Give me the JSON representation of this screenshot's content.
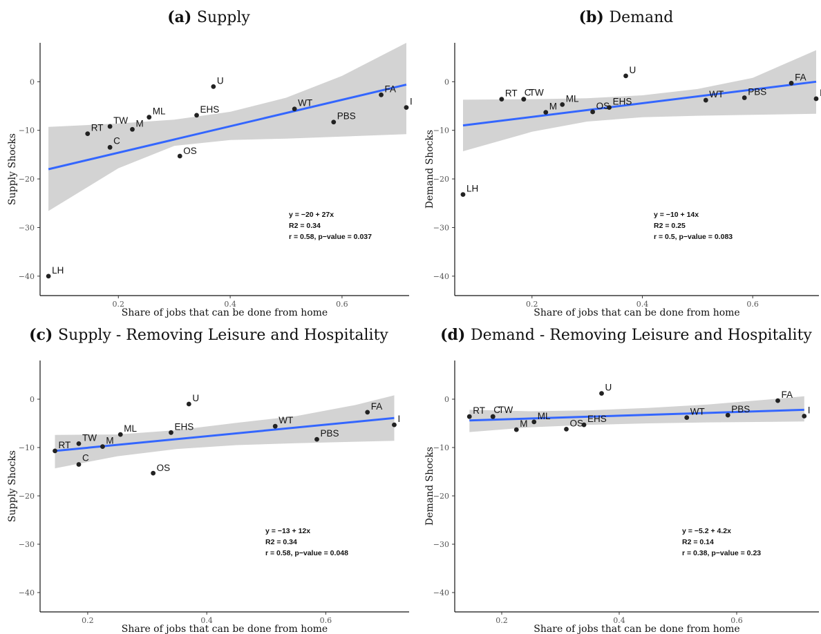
{
  "colors": {
    "fit_line": "#3366ff",
    "confidence_band": "#d3d3d3",
    "points": "#222222"
  },
  "chart_data": [
    {
      "type": "scatter",
      "title_prefix": "(a)",
      "title": "Supply",
      "xlabel": "Share of jobs that can be done from home",
      "ylabel": "Supply Shocks",
      "xlim": [
        0.06,
        0.72
      ],
      "ylim": [
        -44,
        8
      ],
      "xticks": [
        0.2,
        0.4,
        0.6
      ],
      "yticks": [
        0,
        -10,
        -20,
        -30,
        -40
      ],
      "points": [
        {
          "label": "LH",
          "x": 0.075,
          "y": -40
        },
        {
          "label": "RT",
          "x": 0.145,
          "y": -10.7
        },
        {
          "label": "C",
          "x": 0.185,
          "y": -13.5
        },
        {
          "label": "TW",
          "x": 0.185,
          "y": -9.2
        },
        {
          "label": "M",
          "x": 0.225,
          "y": -9.8
        },
        {
          "label": "ML",
          "x": 0.255,
          "y": -7.3
        },
        {
          "label": "OS",
          "x": 0.31,
          "y": -15.3
        },
        {
          "label": "EHS",
          "x": 0.34,
          "y": -6.9
        },
        {
          "label": "U",
          "x": 0.37,
          "y": -1.0
        },
        {
          "label": "WT",
          "x": 0.515,
          "y": -5.6
        },
        {
          "label": "PBS",
          "x": 0.585,
          "y": -8.3
        },
        {
          "label": "FA",
          "x": 0.67,
          "y": -2.7
        },
        {
          "label": "I",
          "x": 0.715,
          "y": -5.3
        }
      ],
      "fit": {
        "x": [
          0.075,
          0.715
        ],
        "y": [
          -18,
          -0.6
        ]
      },
      "band": {
        "x": [
          0.075,
          0.2,
          0.3,
          0.4,
          0.5,
          0.6,
          0.715
        ],
        "upper": [
          -9.3,
          -8.6,
          -7.8,
          -6.2,
          -3.3,
          1.2,
          8
        ],
        "lower": [
          -26.6,
          -17.8,
          -13.2,
          -12,
          -11.7,
          -11.3,
          -10.8
        ]
      },
      "annotation": [
        "y = −20 + 27x",
        "R2 = 0.34",
        "r = 0.58, p−value = 0.037"
      ]
    },
    {
      "type": "scatter",
      "title_prefix": "(b)",
      "title": "Demand",
      "xlabel": "Share of jobs that can be done from home",
      "ylabel": "Demand Shocks",
      "xlim": [
        0.06,
        0.72
      ],
      "ylim": [
        -44,
        8
      ],
      "xticks": [
        0.2,
        0.4,
        0.6
      ],
      "yticks": [
        0,
        -10,
        -20,
        -30,
        -40
      ],
      "points": [
        {
          "label": "LH",
          "x": 0.075,
          "y": -23.2
        },
        {
          "label": "RT",
          "x": 0.145,
          "y": -3.6
        },
        {
          "label": "C",
          "x": 0.185,
          "y": -3.6
        },
        {
          "label": "TW",
          "x": 0.185,
          "y": -3.6
        },
        {
          "label": "M",
          "x": 0.225,
          "y": -6.3
        },
        {
          "label": "ML",
          "x": 0.255,
          "y": -4.7
        },
        {
          "label": "OS",
          "x": 0.31,
          "y": -6.2
        },
        {
          "label": "EHS",
          "x": 0.34,
          "y": -5.3
        },
        {
          "label": "U",
          "x": 0.37,
          "y": 1.2
        },
        {
          "label": "WT",
          "x": 0.515,
          "y": -3.8
        },
        {
          "label": "PBS",
          "x": 0.585,
          "y": -3.3
        },
        {
          "label": "FA",
          "x": 0.67,
          "y": -0.3
        },
        {
          "label": "I",
          "x": 0.715,
          "y": -3.5
        }
      ],
      "fit": {
        "x": [
          0.075,
          0.715
        ],
        "y": [
          -9,
          0
        ]
      },
      "band": {
        "x": [
          0.075,
          0.2,
          0.3,
          0.4,
          0.5,
          0.6,
          0.715
        ],
        "upper": [
          -3.7,
          -3.6,
          -3.4,
          -2.8,
          -1.5,
          0.8,
          6.5
        ],
        "lower": [
          -14.3,
          -10.3,
          -8.2,
          -7.3,
          -7,
          -6.8,
          -6.6
        ]
      },
      "annotation": [
        "y = −10 + 14x",
        "R2 = 0.25",
        "r = 0.5, p−value = 0.083"
      ]
    },
    {
      "type": "scatter",
      "title_prefix": "(c)",
      "title": "Supply - Removing Leisure and Hospitality",
      "xlabel": "Share of jobs that can be done from home",
      "ylabel": "Supply Shocks",
      "xlim": [
        0.12,
        0.74
      ],
      "ylim": [
        -44,
        8
      ],
      "xticks": [
        0.2,
        0.4,
        0.6
      ],
      "yticks": [
        0,
        -10,
        -20,
        -30,
        -40
      ],
      "points": [
        {
          "label": "RT",
          "x": 0.145,
          "y": -10.7
        },
        {
          "label": "C",
          "x": 0.185,
          "y": -13.5
        },
        {
          "label": "TW",
          "x": 0.185,
          "y": -9.2
        },
        {
          "label": "M",
          "x": 0.225,
          "y": -9.8
        },
        {
          "label": "ML",
          "x": 0.255,
          "y": -7.3
        },
        {
          "label": "OS",
          "x": 0.31,
          "y": -15.3
        },
        {
          "label": "EHS",
          "x": 0.34,
          "y": -6.9
        },
        {
          "label": "U",
          "x": 0.37,
          "y": -1.0
        },
        {
          "label": "WT",
          "x": 0.515,
          "y": -5.6
        },
        {
          "label": "PBS",
          "x": 0.585,
          "y": -8.3
        },
        {
          "label": "FA",
          "x": 0.67,
          "y": -2.7
        },
        {
          "label": "I",
          "x": 0.715,
          "y": -5.3
        }
      ],
      "fit": {
        "x": [
          0.145,
          0.715
        ],
        "y": [
          -10.7,
          -3.9
        ]
      },
      "band": {
        "x": [
          0.145,
          0.25,
          0.35,
          0.45,
          0.55,
          0.65,
          0.715
        ],
        "upper": [
          -7.4,
          -7.3,
          -6.4,
          -4.9,
          -3.5,
          -1.2,
          0.8
        ],
        "lower": [
          -14.3,
          -11.8,
          -10.3,
          -9.5,
          -9.1,
          -8.8,
          -8.6
        ]
      },
      "annotation": [
        "y = −13 + 12x",
        "R2 = 0.34",
        "r = 0.58, p−value = 0.048"
      ]
    },
    {
      "type": "scatter",
      "title_prefix": "(d)",
      "title": "Demand - Removing Leisure and Hospitality",
      "xlabel": "Share of jobs that can be done from home",
      "ylabel": "Demand Shocks",
      "xlim": [
        0.12,
        0.74
      ],
      "ylim": [
        -44,
        8
      ],
      "xticks": [
        0.2,
        0.4,
        0.6
      ],
      "yticks": [
        0,
        -10,
        -20,
        -30,
        -40
      ],
      "points": [
        {
          "label": "RT",
          "x": 0.145,
          "y": -3.6
        },
        {
          "label": "C",
          "x": 0.185,
          "y": -3.6
        },
        {
          "label": "TW",
          "x": 0.185,
          "y": -3.6
        },
        {
          "label": "M",
          "x": 0.225,
          "y": -6.3
        },
        {
          "label": "ML",
          "x": 0.255,
          "y": -4.7
        },
        {
          "label": "OS",
          "x": 0.31,
          "y": -6.2
        },
        {
          "label": "EHS",
          "x": 0.34,
          "y": -5.3
        },
        {
          "label": "U",
          "x": 0.37,
          "y": 1.2
        },
        {
          "label": "WT",
          "x": 0.515,
          "y": -3.8
        },
        {
          "label": "PBS",
          "x": 0.585,
          "y": -3.3
        },
        {
          "label": "FA",
          "x": 0.67,
          "y": -0.3
        },
        {
          "label": "I",
          "x": 0.715,
          "y": -3.5
        }
      ],
      "fit": {
        "x": [
          0.145,
          0.715
        ],
        "y": [
          -4.4,
          -2.2
        ]
      },
      "band": {
        "x": [
          0.145,
          0.25,
          0.35,
          0.45,
          0.55,
          0.65,
          0.715
        ],
        "upper": [
          -2.2,
          -2.5,
          -2.3,
          -1.8,
          -1.1,
          -0.1,
          0.6
        ],
        "lower": [
          -6.8,
          -5.8,
          -5.3,
          -5.0,
          -4.8,
          -4.7,
          -4.6
        ]
      },
      "annotation": [
        "y = −5.2 + 4.2x",
        "R2 = 0.14",
        "r = 0.38, p−value = 0.23"
      ]
    }
  ]
}
